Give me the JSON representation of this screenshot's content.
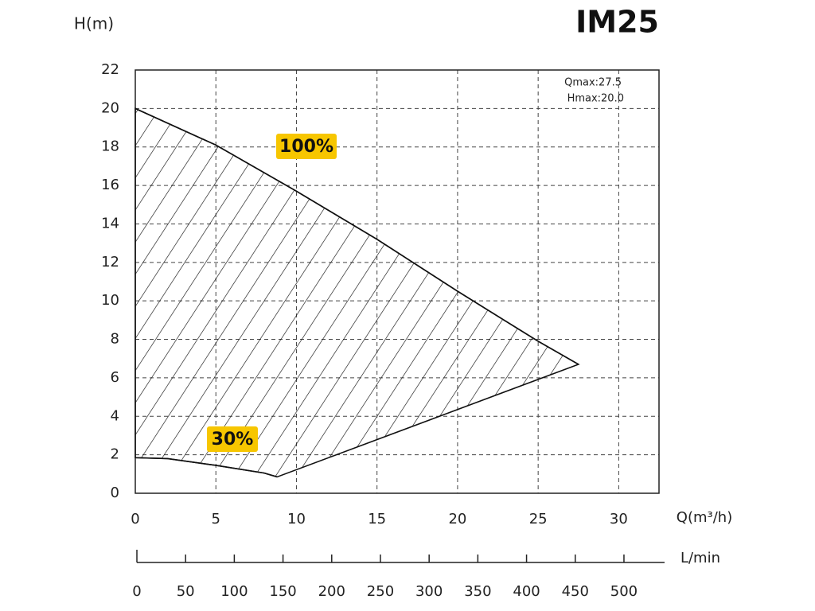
{
  "chart_data": {
    "type": "area",
    "title": "IM25",
    "y_label": "H(m)",
    "x_label": "Q(m³/h)",
    "x2_label": "L/min",
    "annotations": [
      "Qmax:27.5",
      "Hmax:20.0"
    ],
    "xlim": [
      0,
      32.5
    ],
    "xticks": [
      0,
      5,
      10,
      15,
      20,
      25,
      30
    ],
    "ylim": [
      0,
      22
    ],
    "yticks": [
      0,
      2,
      4,
      6,
      8,
      10,
      12,
      14,
      16,
      18,
      20,
      22
    ],
    "x2lim": [
      0,
      541.7
    ],
    "x2ticks": [
      0,
      50,
      100,
      150,
      200,
      250,
      300,
      350,
      400,
      450,
      500
    ],
    "grid": true,
    "series": [
      {
        "name": "100%",
        "color": "#111111",
        "x": [
          0,
          5,
          10,
          15,
          20,
          25,
          27.5
        ],
        "values": [
          20,
          18.1,
          15.7,
          13.2,
          10.5,
          7.9,
          6.7
        ]
      },
      {
        "name": "30%",
        "color": "#111111",
        "x": [
          0,
          2,
          5,
          8,
          8.8
        ],
        "values": [
          1.85,
          1.8,
          1.45,
          1.05,
          0.85
        ]
      }
    ],
    "label_color": "#f7c600"
  }
}
